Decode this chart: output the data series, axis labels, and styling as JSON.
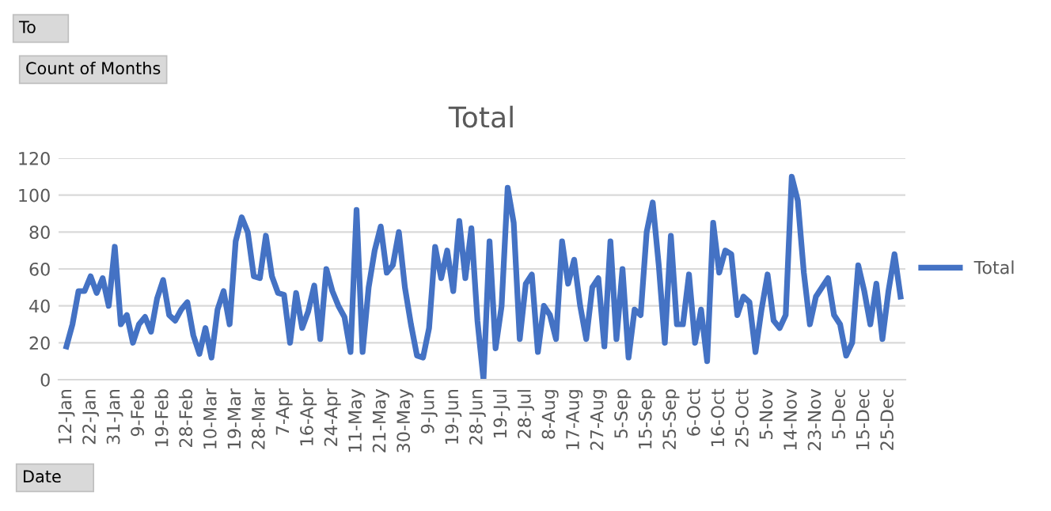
{
  "chart_data": {
    "type": "line",
    "title": "Total",
    "annotations": [
      "To",
      "Count of Months",
      "Date"
    ],
    "categories": [
      "12-Jan",
      null,
      null,
      null,
      "22-Jan",
      null,
      null,
      null,
      "31-Jan",
      null,
      null,
      null,
      "9-Feb",
      null,
      null,
      null,
      "19-Feb",
      null,
      null,
      null,
      "28-Feb",
      null,
      null,
      null,
      "10-Mar",
      null,
      null,
      null,
      "19-Mar",
      null,
      null,
      null,
      "28-Mar",
      null,
      null,
      null,
      "7-Apr",
      null,
      null,
      null,
      "16-Apr",
      null,
      null,
      null,
      "24-Apr",
      null,
      null,
      null,
      "11-May",
      null,
      null,
      null,
      "21-May",
      null,
      null,
      null,
      "30-May",
      null,
      null,
      null,
      "9-Jun",
      null,
      null,
      null,
      "19-Jun",
      null,
      null,
      null,
      "28-Jun",
      null,
      null,
      null,
      "19-Jul",
      null,
      null,
      null,
      "28-Jul",
      null,
      null,
      null,
      "8-Aug",
      null,
      null,
      null,
      "17-Aug",
      null,
      null,
      null,
      "27-Aug",
      null,
      null,
      null,
      "5-Sep",
      null,
      null,
      null,
      "15-Sep",
      null,
      null,
      null,
      "25-Sep",
      null,
      null,
      null,
      "6-Oct",
      null,
      null,
      null,
      "16-Oct",
      null,
      null,
      null,
      "25-Oct",
      null,
      null,
      null,
      "5-Nov",
      null,
      null,
      null,
      "14-Nov",
      null,
      null,
      null,
      "23-Nov",
      null,
      null,
      null,
      "5-Dec",
      null,
      null,
      null,
      "15-Dec",
      null,
      null,
      null,
      "25-Dec",
      null,
      null
    ],
    "series": [
      {
        "name": "Total",
        "color": "#4472c4",
        "values": [
          18,
          30,
          48,
          48,
          56,
          47,
          55,
          40,
          72,
          30,
          35,
          20,
          30,
          34,
          26,
          44,
          54,
          35,
          32,
          38,
          42,
          24,
          14,
          28,
          12,
          38,
          48,
          30,
          75,
          88,
          80,
          56,
          55,
          78,
          56,
          47,
          46,
          20,
          47,
          28,
          37,
          51,
          22,
          60,
          48,
          40,
          34,
          15,
          92,
          15,
          50,
          70,
          83,
          58,
          62,
          80,
          50,
          30,
          13,
          12,
          28,
          72,
          55,
          70,
          48,
          86,
          55,
          82,
          32,
          0,
          75,
          17,
          40,
          104,
          85,
          22,
          52,
          57,
          15,
          40,
          35,
          22,
          75,
          52,
          65,
          40,
          22,
          50,
          55,
          18,
          75,
          22,
          60,
          12,
          38,
          35,
          80,
          96,
          62,
          20,
          78,
          30,
          30,
          57,
          20,
          38,
          10,
          85,
          58,
          70,
          68,
          35,
          45,
          42,
          15,
          38,
          57,
          32,
          28,
          35,
          110,
          97,
          58,
          30,
          45,
          50,
          55,
          35,
          30,
          13,
          20,
          62,
          48,
          30,
          52,
          22,
          48,
          68,
          45
        ]
      }
    ],
    "ylim": [
      0,
      120
    ],
    "yticks": [
      0,
      20,
      40,
      60,
      80,
      100,
      120
    ],
    "grid": "y",
    "legend": "right",
    "marker": "none",
    "line_style": "solid"
  }
}
